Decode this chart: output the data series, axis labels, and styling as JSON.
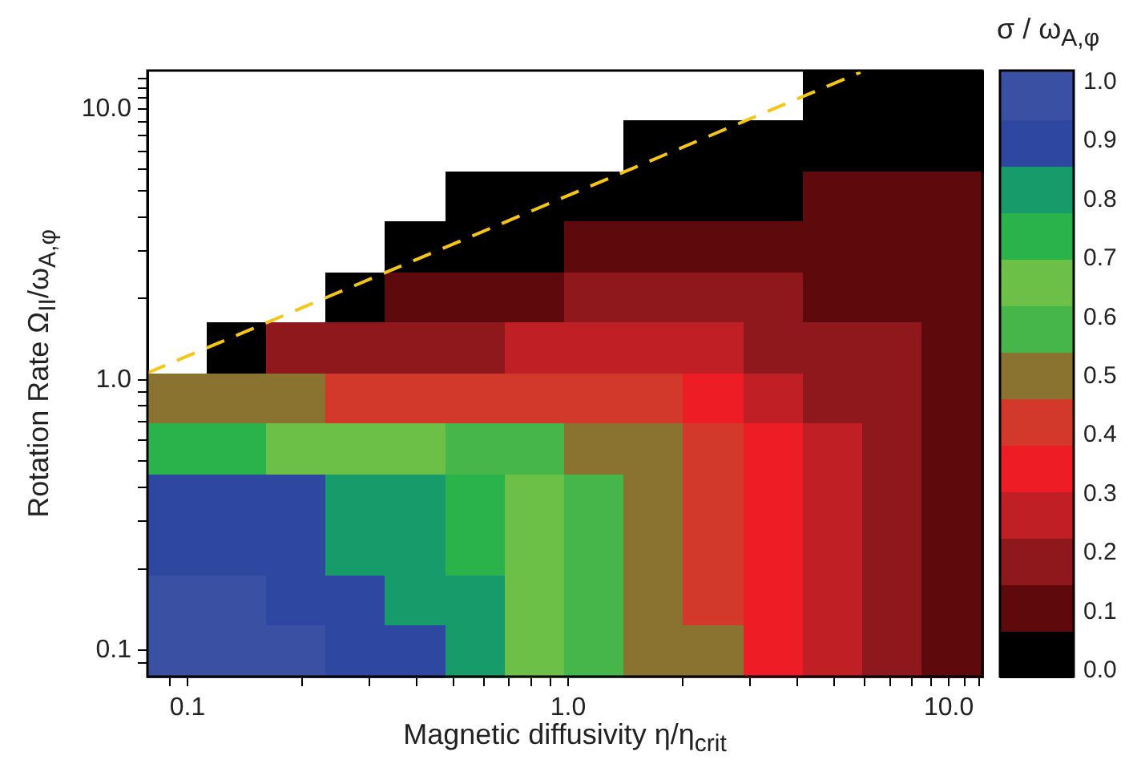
{
  "chart_data": {
    "type": "heatmap",
    "xlabel": "Magnetic diffusivity  η/η$_{crit}$",
    "ylabel": "Rotation Rate Ω$_{II}$/ω$_{A,φ}$",
    "clabel": "σ / ω$_{A,φ}$",
    "log": "xy",
    "grid": false,
    "legend": false,
    "xlim": [
      0.0785,
      12.25
    ],
    "ylim": [
      0.08,
      13.9
    ],
    "xticks": [
      {
        "value": 0.09,
        "label": null
      },
      {
        "value": 0.1,
        "label": "0.1"
      },
      {
        "value": 0.2,
        "label": null
      },
      {
        "value": 0.3,
        "label": null
      },
      {
        "value": 0.4,
        "label": null
      },
      {
        "value": 0.5,
        "label": null
      },
      {
        "value": 0.6,
        "label": null
      },
      {
        "value": 0.7,
        "label": null
      },
      {
        "value": 0.8,
        "label": null
      },
      {
        "value": 0.9,
        "label": null
      },
      {
        "value": 1,
        "label": "1.0"
      },
      {
        "value": 2,
        "label": null
      },
      {
        "value": 3,
        "label": null
      },
      {
        "value": 4,
        "label": null
      },
      {
        "value": 5,
        "label": null
      },
      {
        "value": 6,
        "label": null
      },
      {
        "value": 7,
        "label": null
      },
      {
        "value": 8,
        "label": null
      },
      {
        "value": 9,
        "label": null
      },
      {
        "value": 10,
        "label": "10.0"
      },
      {
        "value": 11,
        "label": null
      },
      {
        "value": 12,
        "label": null
      }
    ],
    "yticks": [
      {
        "value": 0.09,
        "label": null
      },
      {
        "value": 0.1,
        "label": "0.1"
      },
      {
        "value": 0.2,
        "label": null
      },
      {
        "value": 0.3,
        "label": null
      },
      {
        "value": 0.4,
        "label": null
      },
      {
        "value": 0.5,
        "label": null
      },
      {
        "value": 0.6,
        "label": null
      },
      {
        "value": 0.7,
        "label": null
      },
      {
        "value": 0.8,
        "label": null
      },
      {
        "value": 0.9,
        "label": null
      },
      {
        "value": 1,
        "label": "1.0"
      },
      {
        "value": 2,
        "label": null
      },
      {
        "value": 3,
        "label": null
      },
      {
        "value": 4,
        "label": null
      },
      {
        "value": 5,
        "label": null
      },
      {
        "value": 6,
        "label": null
      },
      {
        "value": 7,
        "label": null
      },
      {
        "value": 8,
        "label": null
      },
      {
        "value": 9,
        "label": null
      },
      {
        "value": 10,
        "label": "10.0"
      },
      {
        "value": 11,
        "label": null
      },
      {
        "value": 12,
        "label": null
      },
      {
        "value": 13,
        "label": null
      }
    ],
    "clim": [
      -0.01,
      1.02
    ],
    "cticks": [
      {
        "value": 0,
        "label": "0.0"
      },
      0.1,
      0.2,
      0.3,
      0.4,
      0.5,
      0.6,
      0.7,
      0.8,
      0.9,
      {
        "value": 1,
        "label": "1.0"
      }
    ],
    "colors": [
      "#000000",
      "#5e0a0d",
      "#8e181c",
      "#c11f26",
      "#ee1c25",
      "#d3392a",
      "#8a7230",
      "#46b64b",
      "#6cbf47",
      "#2bb34b",
      "#179b6b",
      "#2e47a0",
      "#3a50a3"
    ],
    "cells": [
      [
        null,
        null,
        null,
        null,
        null,
        null,
        null,
        null,
        null,
        null,
        null,
        0.03,
        0.03,
        0.03
      ],
      [
        null,
        null,
        null,
        null,
        null,
        null,
        null,
        null,
        0.03,
        0.03,
        0.03,
        0.03,
        0.03,
        0.03
      ],
      [
        null,
        null,
        null,
        null,
        null,
        0.03,
        0.03,
        0.03,
        0.03,
        0.03,
        0.03,
        0.11,
        0.11,
        0.11
      ],
      [
        null,
        null,
        null,
        null,
        0.03,
        0.03,
        0.03,
        0.11,
        0.11,
        0.11,
        0.11,
        0.11,
        0.11,
        0.11
      ],
      [
        null,
        null,
        null,
        0.03,
        0.11,
        0.11,
        0.11,
        0.19,
        0.19,
        0.19,
        0.19,
        0.11,
        0.11,
        0.11
      ],
      [
        null,
        0.03,
        0.19,
        0.19,
        0.19,
        0.19,
        0.27,
        0.27,
        0.27,
        0.27,
        0.19,
        0.19,
        0.19,
        0.11
      ],
      [
        0.5,
        0.5,
        0.5,
        0.43,
        0.43,
        0.43,
        0.43,
        0.43,
        0.43,
        0.35,
        0.27,
        0.19,
        0.19,
        0.11
      ],
      [
        0.74,
        0.74,
        0.66,
        0.66,
        0.66,
        0.58,
        0.58,
        0.5,
        0.5,
        0.43,
        0.35,
        0.27,
        0.19,
        0.11
      ],
      [
        0.9,
        0.9,
        0.9,
        0.82,
        0.82,
        0.74,
        0.66,
        0.58,
        0.5,
        0.43,
        0.35,
        0.27,
        0.19,
        0.11
      ],
      [
        0.9,
        0.9,
        0.9,
        0.82,
        0.82,
        0.74,
        0.66,
        0.58,
        0.5,
        0.43,
        0.35,
        0.27,
        0.19,
        0.11
      ],
      [
        0.98,
        0.98,
        0.9,
        0.9,
        0.82,
        0.82,
        0.66,
        0.58,
        0.5,
        0.43,
        0.35,
        0.27,
        0.19,
        0.11
      ],
      [
        0.98,
        0.98,
        0.98,
        0.9,
        0.9,
        0.82,
        0.66,
        0.58,
        0.5,
        0.5,
        0.35,
        0.27,
        0.19,
        0.11
      ]
    ],
    "series": [
      {
        "type": "line",
        "x": [
          0.0785,
          5.86
        ],
        "values": [
          1.06,
          13.7
        ],
        "color": "#f5c518",
        "line_style": "dashed",
        "marker": "none"
      }
    ]
  }
}
